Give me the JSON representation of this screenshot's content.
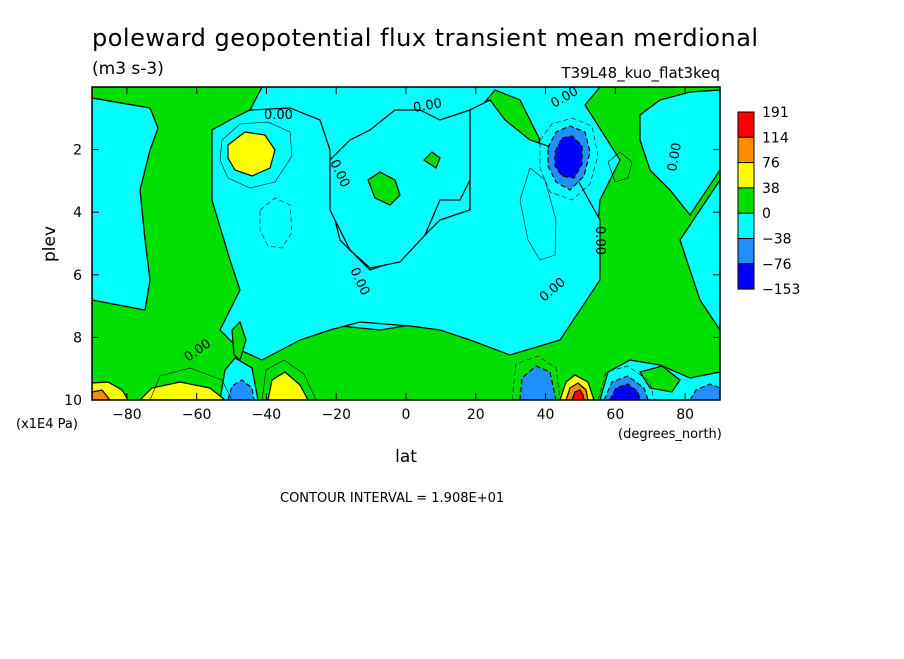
{
  "title": "poleward geopotential flux transient mean merdional",
  "units": "(m3 s-3)",
  "experiment": "T39L48_kuo_flat3keq",
  "ylabel": "plev",
  "yunits": "(x1E4 Pa)",
  "xlabel": "lat",
  "xunits": "(degrees_north)",
  "contour_interval": "CONTOUR INTERVAL = 1.908E+01",
  "chart_data": {
    "type": "contour",
    "title": "poleward geopotential flux transient mean merdional",
    "units": "(m3 s-3)",
    "x_axis": {
      "label": "lat",
      "units": "(degrees_north)",
      "range": [
        -90,
        90
      ],
      "ticks": [
        -80,
        -60,
        -40,
        -20,
        0,
        20,
        40,
        60,
        80
      ]
    },
    "y_axis": {
      "label": "plev",
      "units": "(x1E4 Pa)",
      "range": [
        0,
        10
      ],
      "inverted": true,
      "ticks": [
        2,
        4,
        6,
        8,
        10
      ]
    },
    "contour_interval": 19.08,
    "colorbar": {
      "levels": [
        "191",
        "114",
        "76",
        "38",
        "0",
        "-38",
        "-76",
        "-153"
      ],
      "colors": [
        "#ff0000",
        "#ff8c00",
        "#ffff00",
        "#00e000",
        "#00ffff",
        "#1e90ff",
        "#0000ff"
      ]
    },
    "contour_labels": [
      "0.00",
      "0.00",
      "0.00",
      "0.00",
      "0.00",
      "0.00",
      "0.00",
      "0.00",
      "0.00"
    ],
    "features": [
      {
        "lat": -46,
        "plev": 2.2,
        "sign": "positive",
        "max_band": "38-76"
      },
      {
        "lat": -40,
        "plev": 4.5,
        "sign": "negative",
        "max_band": "0--38"
      },
      {
        "lat": 46,
        "plev": 2.4,
        "sign": "negative",
        "max_band": "-76--153"
      },
      {
        "lat": 38,
        "plev": 4.0,
        "sign": "positive",
        "max_band": "0-38"
      },
      {
        "lat": 45,
        "plev": 9.8,
        "sign": "positive",
        "max_band": "114-191"
      },
      {
        "lat": 38,
        "plev": 9.5,
        "sign": "negative",
        "max_band": "-38--76"
      },
      {
        "lat": -85,
        "plev": 9.8,
        "sign": "positive",
        "max_band": "38-76"
      },
      {
        "lat": -40,
        "plev": 9.6,
        "sign": "positive",
        "max_band": "38-76"
      }
    ]
  }
}
